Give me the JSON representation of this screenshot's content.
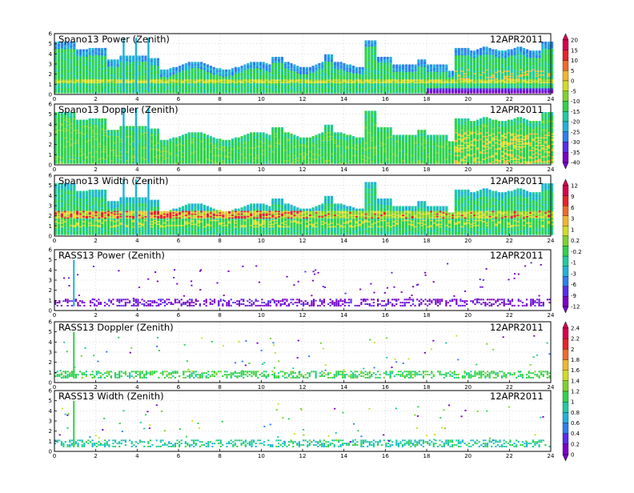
{
  "colors": {
    "rainbow": [
      "#7a00c8",
      "#5a2cf0",
      "#2f7ff0",
      "#1fb2d8",
      "#1ecba0",
      "#2fd24a",
      "#7ed22a",
      "#d2dc22",
      "#f0b62a",
      "#f06a2a",
      "#e8222a",
      "#d8004a"
    ],
    "speckle": [
      "#7a00c8",
      "#2f7ff0",
      "#1ecba0",
      "#2fd24a",
      "#7ed22a",
      "#d2dc22"
    ]
  },
  "colorbars": [
    {
      "labels": [
        "20",
        "15",
        "10",
        "5",
        "0",
        "-5",
        "-10",
        "-15",
        "-20",
        "-25",
        "-30",
        "-35",
        "-40"
      ]
    },
    {
      "labels": [
        "12",
        "9",
        "6",
        "3",
        "1",
        "0.2",
        "-0.2",
        "-1",
        "-3",
        "-6",
        "-9",
        "-12"
      ]
    },
    {
      "labels": [
        "2.4",
        "2.2",
        "2",
        "1.8",
        "1.6",
        "1.4",
        "1.2",
        "1",
        "0.8",
        "0.6",
        "0.4",
        "0.2",
        "0"
      ]
    }
  ],
  "chart_data": [
    {
      "type": "heatmap",
      "title": "Spano13 Power (Zenith)",
      "date": "12APR2011",
      "xlim": [
        0,
        24
      ],
      "ylim": [
        0,
        6
      ],
      "xticks": [
        "0",
        "2",
        "4",
        "6",
        "8",
        "10",
        "12",
        "14",
        "16",
        "18",
        "20",
        "22",
        "24"
      ],
      "yticks": [
        "0",
        "1",
        "2",
        "3",
        "4",
        "5",
        "6"
      ],
      "colorbar": "first",
      "range": [
        -40,
        20
      ]
    },
    {
      "type": "heatmap",
      "title": "Spano13 Doppler (Zenith)",
      "date": "12APR2011",
      "xlim": [
        0,
        24
      ],
      "ylim": [
        0,
        6
      ],
      "xticks": [
        "0",
        "2",
        "4",
        "6",
        "8",
        "10",
        "12",
        "14",
        "16",
        "18",
        "20",
        "22",
        "24"
      ],
      "yticks": [
        "0",
        "1",
        "2",
        "3",
        "4",
        "5",
        "6"
      ]
    },
    {
      "type": "heatmap",
      "title": "Spano13 Width (Zenith)",
      "date": "12APR2011",
      "xlim": [
        0,
        24
      ],
      "ylim": [
        0,
        6
      ],
      "xticks": [
        "0",
        "2",
        "4",
        "6",
        "8",
        "10",
        "12",
        "14",
        "16",
        "18",
        "20",
        "22",
        "24"
      ],
      "yticks": [
        "0",
        "1",
        "2",
        "3",
        "4",
        "5",
        "6"
      ],
      "colorbar": "second",
      "range": [
        -12,
        12
      ]
    },
    {
      "type": "heatmap",
      "title": "RASS13 Power (Zenith)",
      "date": "12APR2011",
      "xlim": [
        0,
        24
      ],
      "ylim": [
        0,
        6
      ],
      "xticks": [
        "0",
        "2",
        "4",
        "6",
        "8",
        "10",
        "12",
        "14",
        "16",
        "18",
        "20",
        "22",
        "24"
      ],
      "yticks": [
        "0",
        "1",
        "2",
        "3",
        "4",
        "5",
        "6"
      ]
    },
    {
      "type": "heatmap",
      "title": "RASS13 Doppler (Zenith)",
      "date": "12APR2011",
      "xlim": [
        0,
        24
      ],
      "ylim": [
        0,
        6
      ],
      "xticks": [
        "0",
        "2",
        "4",
        "6",
        "8",
        "10",
        "12",
        "14",
        "16",
        "18",
        "20",
        "22",
        "24"
      ],
      "yticks": [
        "0",
        "1",
        "2",
        "3",
        "4",
        "5",
        "6"
      ],
      "colorbar": "third",
      "range": [
        0,
        2.4
      ]
    },
    {
      "type": "heatmap",
      "title": "RASS13 Width (Zenith)",
      "date": "12APR2011",
      "xlim": [
        0,
        24
      ],
      "ylim": [
        0,
        6
      ],
      "xticks": [
        "0",
        "2",
        "4",
        "6",
        "8",
        "10",
        "12",
        "14",
        "16",
        "18",
        "20",
        "22",
        "24"
      ],
      "yticks": [
        "0",
        "1",
        "2",
        "3",
        "4",
        "5",
        "6"
      ]
    }
  ]
}
